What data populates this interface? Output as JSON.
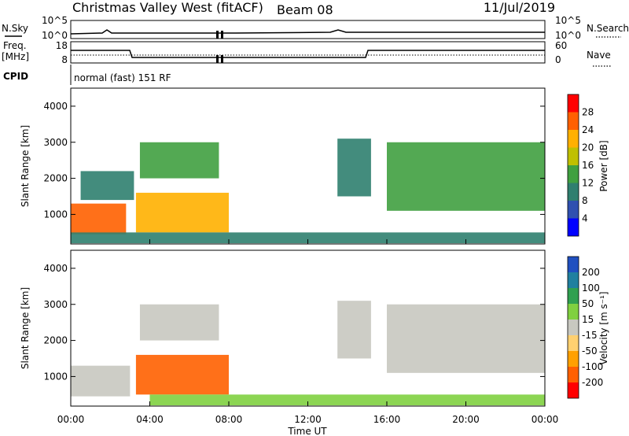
{
  "header": {
    "title": "Christmas Valley West (fitACF)",
    "beam": "Beam 08",
    "date": "11/Jul/2019"
  },
  "panels": {
    "nsky": {
      "label": "N.Sky",
      "right_label": "N.Search",
      "left_ticks": [
        "10^5",
        "10^0"
      ],
      "right_ticks": [
        "10^5",
        "10^0"
      ]
    },
    "freq": {
      "label_line1": "Freq.",
      "label_line2": "[MHz]",
      "right_label": "Nave",
      "left_ticks": [
        "18",
        "8"
      ],
      "right_ticks": [
        "60",
        "0"
      ]
    },
    "cpid": {
      "label": "CPID",
      "mode": "normal (fast) 151 RF"
    }
  },
  "colors": {
    "frame": "#000000",
    "background": "#ffffff",
    "ground_scatter": "#c8c8c0"
  },
  "chart_data": [
    {
      "type": "heatmap",
      "name_key": "power",
      "ylabel": "Slant Range [km]",
      "ylim": [
        180,
        4500
      ],
      "yticks": [
        1000,
        2000,
        3000,
        4000
      ],
      "xlim_hours": [
        0,
        24
      ],
      "colorbar": {
        "label": "Power [dB]",
        "range": [
          0,
          32
        ],
        "ticks": [
          "28",
          "24",
          "20",
          "16",
          "12",
          "8",
          "4"
        ],
        "colors": [
          "#0000ff",
          "#3050b0",
          "#2f7f6f",
          "#40a040",
          "#c0c000",
          "#ffb000",
          "#ff6000",
          "#ff0000"
        ]
      },
      "regions": [
        {
          "t0": 0.0,
          "t1": 2.8,
          "r0": 450,
          "r1": 1300,
          "value": 26
        },
        {
          "t0": 0.5,
          "t1": 3.2,
          "r0": 1400,
          "r1": 2200,
          "value": 10
        },
        {
          "t0": 3.3,
          "t1": 8.0,
          "r0": 500,
          "r1": 1600,
          "value": 22
        },
        {
          "t0": 3.5,
          "t1": 7.5,
          "r0": 2000,
          "r1": 3000,
          "value": 14
        },
        {
          "t0": 0.0,
          "t1": 24.0,
          "r0": 200,
          "r1": 500,
          "value": 8
        },
        {
          "t0": 13.5,
          "t1": 15.2,
          "r0": 1500,
          "r1": 3100,
          "value": 9
        },
        {
          "t0": 16.0,
          "t1": 24.0,
          "r0": 1100,
          "r1": 3000,
          "value": 12
        }
      ]
    },
    {
      "type": "heatmap",
      "name_key": "velocity",
      "ylabel": "Slant Range [km]",
      "xlabel": "Time UT",
      "ylim": [
        180,
        4500
      ],
      "yticks": [
        1000,
        2000,
        3000,
        4000
      ],
      "xlim_hours": [
        0,
        24
      ],
      "xticks": [
        "00:00",
        "04:00",
        "08:00",
        "12:00",
        "16:00",
        "20:00",
        "00:00"
      ],
      "colorbar": {
        "label": "Velocity [m s⁻¹]",
        "range": [
          -250,
          250
        ],
        "ticks": [
          "200",
          "100",
          "50",
          "15",
          "-15",
          "-50",
          "-100",
          "-200"
        ],
        "colors": [
          "#ff0000",
          "#ff6000",
          "#ffa000",
          "#ffd070",
          "#c8c8c0",
          "#80d040",
          "#30a050",
          "#2080a0",
          "#2050c0"
        ]
      },
      "regions": [
        {
          "t0": 0.0,
          "t1": 3.0,
          "r0": 450,
          "r1": 1300,
          "value": 0
        },
        {
          "t0": 3.3,
          "t1": 8.0,
          "r0": 500,
          "r1": 1600,
          "value": -150
        },
        {
          "t0": 3.5,
          "t1": 7.5,
          "r0": 2000,
          "r1": 3000,
          "value": 0
        },
        {
          "t0": 4.0,
          "t1": 24.0,
          "r0": 200,
          "r1": 500,
          "value": 60
        },
        {
          "t0": 13.5,
          "t1": 15.2,
          "r0": 1500,
          "r1": 3100,
          "value": 0
        },
        {
          "t0": 16.0,
          "t1": 24.0,
          "r0": 1100,
          "r1": 3000,
          "value": 0
        }
      ]
    }
  ]
}
